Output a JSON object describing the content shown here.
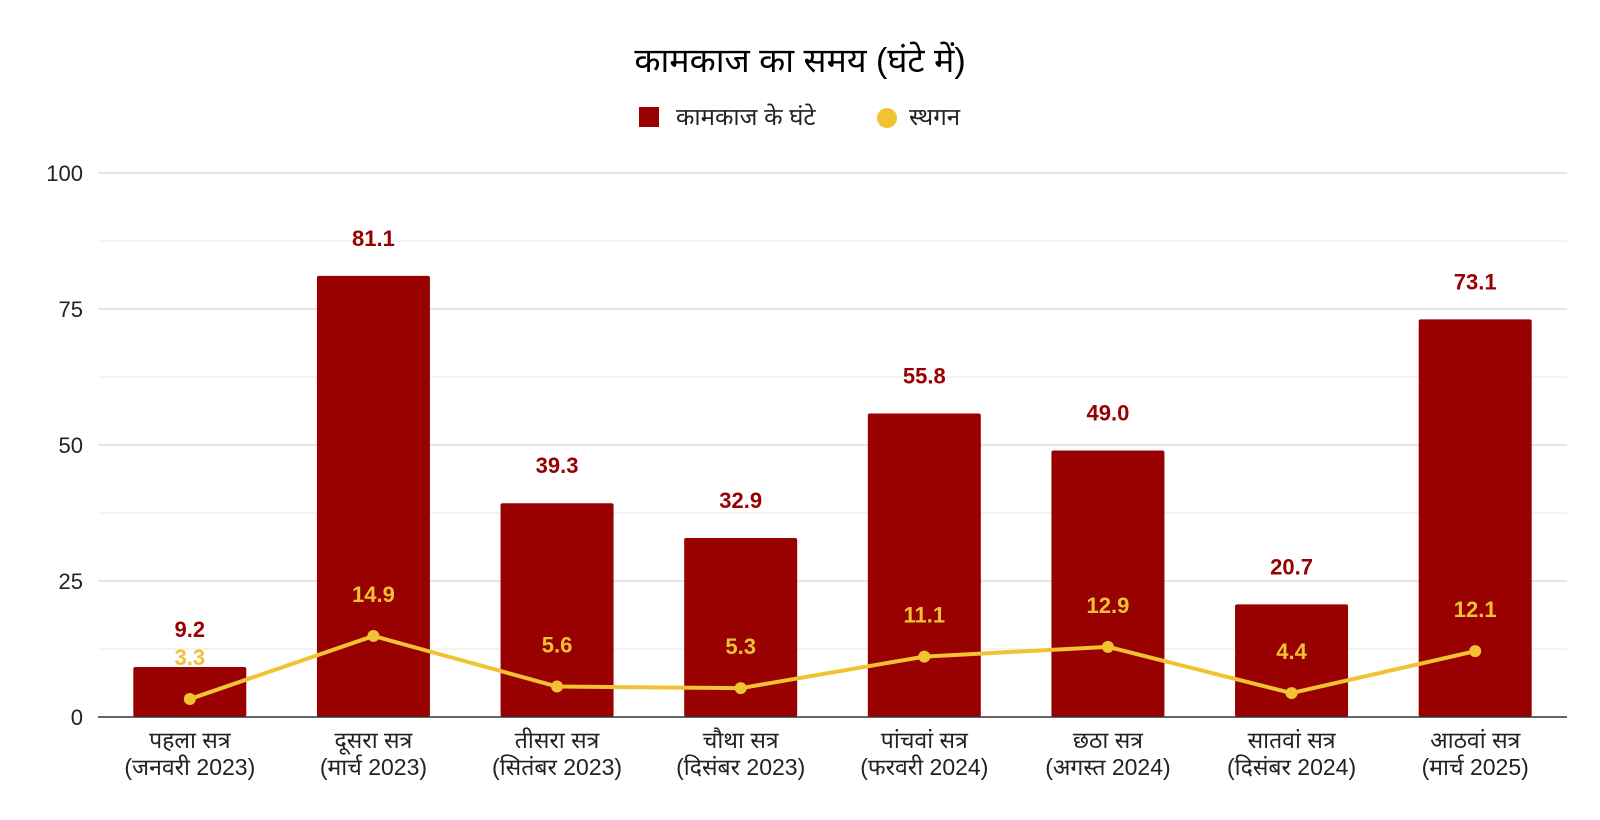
{
  "chart_data": {
    "type": "bar",
    "title": "कामकाज का समय (घंटे में)",
    "xlabel": "",
    "ylabel": "",
    "ylim": [
      0,
      100
    ],
    "yticks": [
      0,
      25,
      50,
      75,
      100
    ],
    "grid": true,
    "legend_position": "top-center",
    "categories": [
      [
        "पहला सत्र",
        "(जनवरी 2023)"
      ],
      [
        "दूसरा सत्र",
        "(मार्च 2023)"
      ],
      [
        "तीसरा सत्र",
        "(सितंबर 2023)"
      ],
      [
        "चौथा सत्र",
        "(दिसंबर 2023)"
      ],
      [
        "पांचवां सत्र",
        "(फरवरी 2024)"
      ],
      [
        "छठा सत्र",
        "(अगस्त 2024)"
      ],
      [
        "सातवां सत्र",
        "(दिसंबर 2024)"
      ],
      [
        "आठवां सत्र",
        "(मार्च 2025)"
      ]
    ],
    "series": [
      {
        "name": "कामकाज के घंटे",
        "type": "bar",
        "color": "#990000",
        "values": [
          9.2,
          81.1,
          39.3,
          32.9,
          55.8,
          49.0,
          20.7,
          73.1
        ],
        "labels": [
          "9.2",
          "81.1",
          "39.3",
          "32.9",
          "55.8",
          "49.0",
          "20.7",
          "73.1"
        ]
      },
      {
        "name": "स्थगन",
        "type": "line",
        "color": "#F1C232",
        "values": [
          3.3,
          14.9,
          5.6,
          5.3,
          11.1,
          12.9,
          4.4,
          12.1
        ],
        "labels": [
          "3.3",
          "14.9",
          "5.6",
          "5.3",
          "11.1",
          "12.9",
          "4.4",
          "12.1"
        ]
      }
    ]
  }
}
